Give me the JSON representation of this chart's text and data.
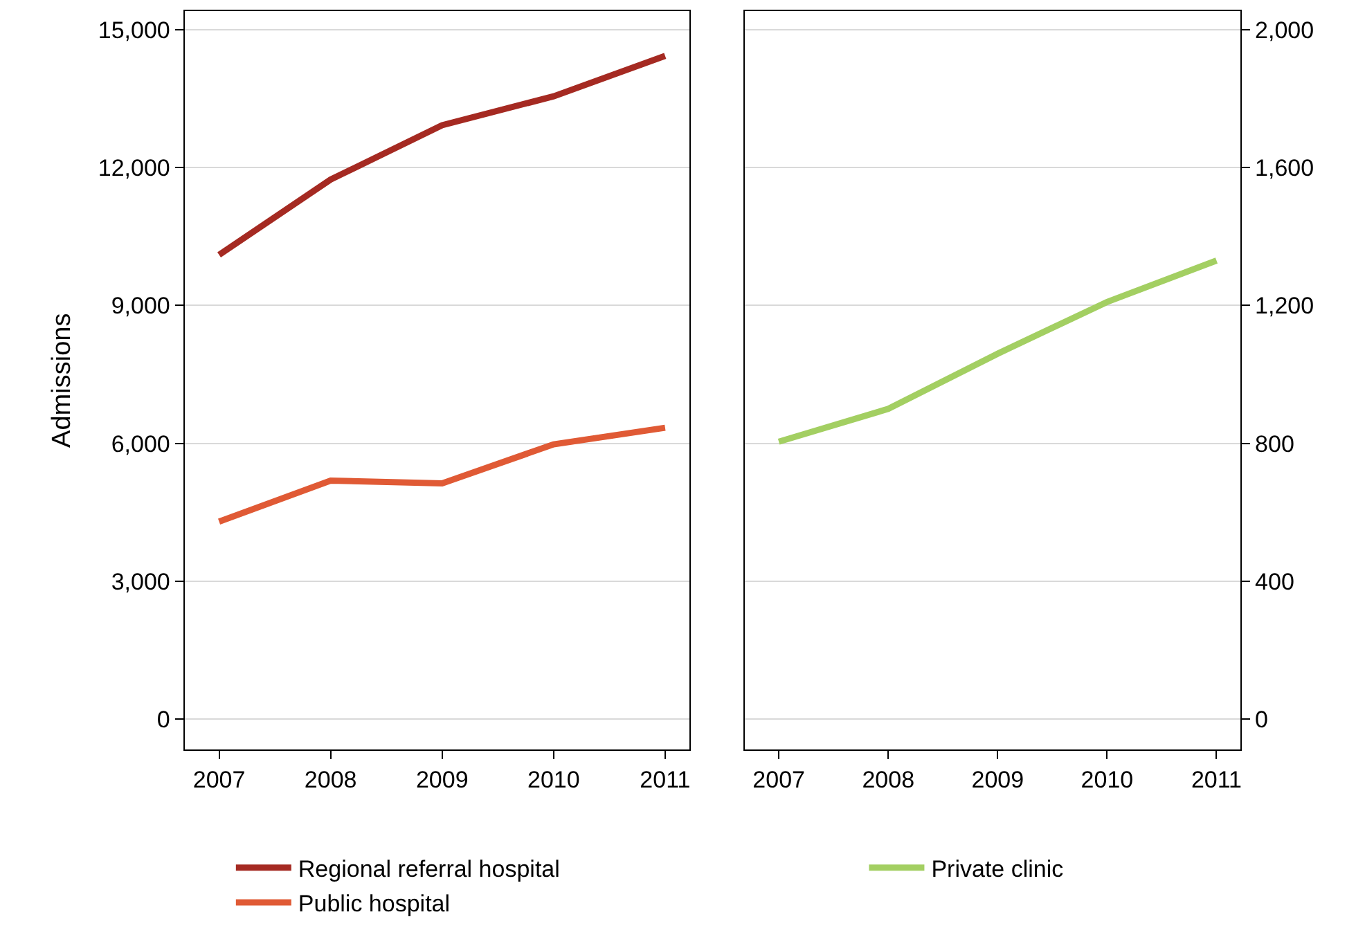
{
  "chart_data": [
    {
      "type": "line",
      "ylabel": "Admissions",
      "x": [
        2007,
        2008,
        2009,
        2010,
        2011
      ],
      "xlim": [
        2006.69,
        2011.22
      ],
      "xticks": [
        2007,
        2008,
        2009,
        2010,
        2011
      ],
      "ylim": [
        -660,
        15400
      ],
      "yticks": [
        {
          "value": 0,
          "label": "0"
        },
        {
          "value": 3000,
          "label": "3,000"
        },
        {
          "value": 6000,
          "label": "6,000"
        },
        {
          "value": 9000,
          "label": "9,000"
        },
        {
          "value": 12000,
          "label": "12,000"
        },
        {
          "value": 15000,
          "label": "15,000"
        }
      ],
      "grid": "y",
      "legend": "bottom",
      "marker": "none",
      "line_style": "solid",
      "series": [
        {
          "name": "Regional referral hospital",
          "color": "#a52a22",
          "values": [
            10100,
            11740,
            12920,
            13550,
            14430
          ]
        },
        {
          "name": "Public hospital",
          "color": "#e05a35",
          "values": [
            4300,
            5190,
            5130,
            5980,
            6340
          ]
        }
      ]
    },
    {
      "type": "line",
      "x": [
        2007,
        2008,
        2009,
        2010,
        2011
      ],
      "xlim": [
        2006.69,
        2011.22
      ],
      "xticks": [
        2007,
        2008,
        2009,
        2010,
        2011
      ],
      "ylim": [
        -88,
        2053
      ],
      "yticks": [
        {
          "value": 0,
          "label": "0"
        },
        {
          "value": 400,
          "label": "400"
        },
        {
          "value": 800,
          "label": "800"
        },
        {
          "value": 1200,
          "label": "1,200"
        },
        {
          "value": 1600,
          "label": "1,600"
        },
        {
          "value": 2000,
          "label": "2,000"
        }
      ],
      "grid": "y",
      "legend": "bottom",
      "marker": "none",
      "line_style": "solid",
      "series": [
        {
          "name": "Private clinic",
          "color": "#a3cf62",
          "values": [
            805,
            900,
            1060,
            1210,
            1330
          ]
        }
      ]
    }
  ]
}
